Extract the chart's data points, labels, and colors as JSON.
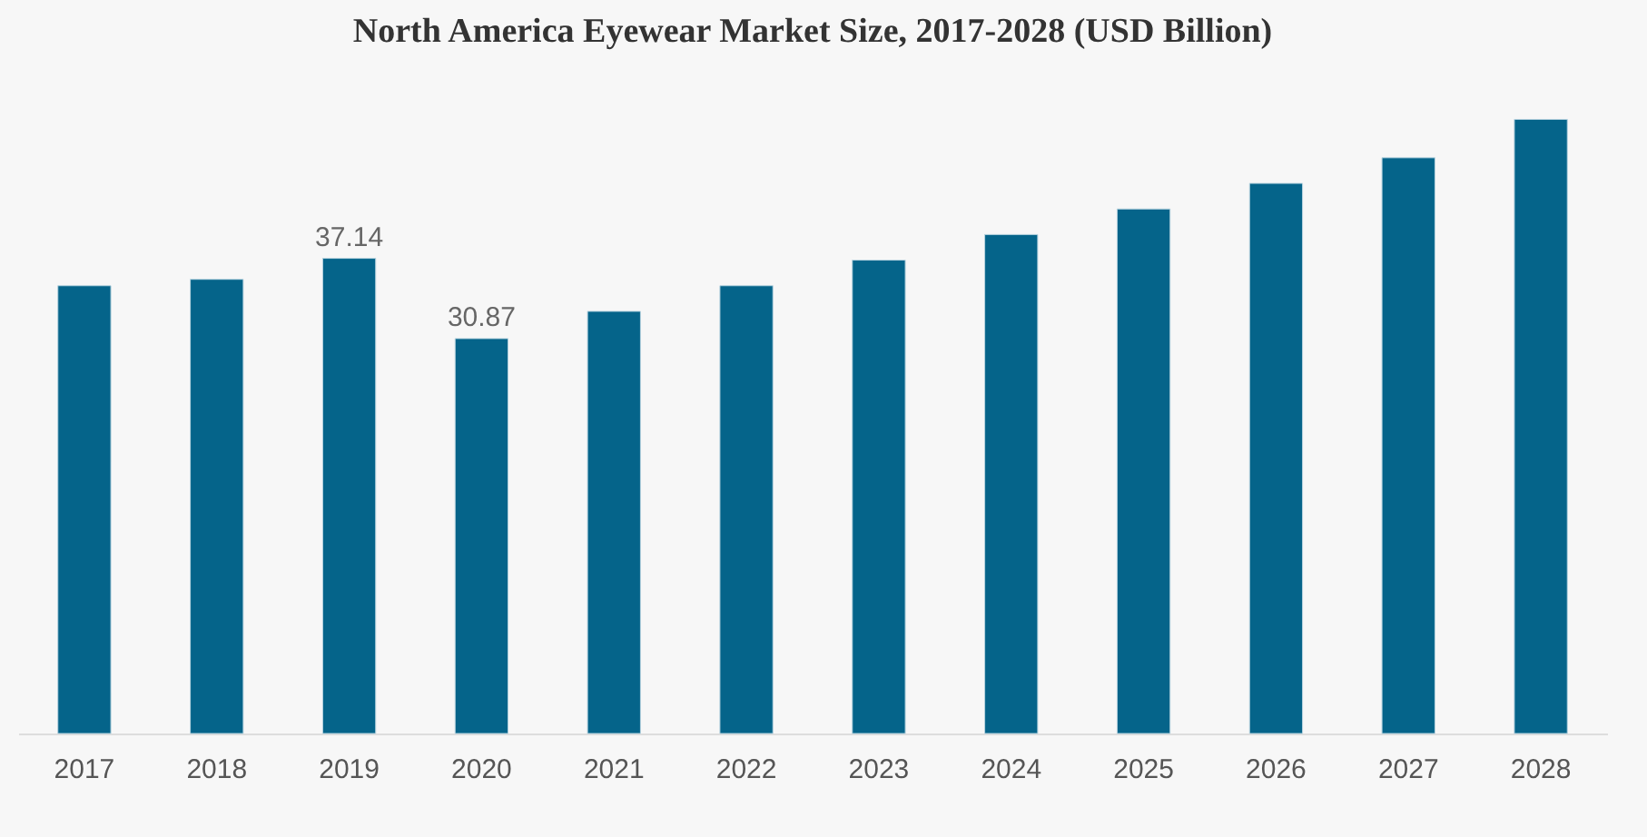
{
  "chart_data": {
    "type": "bar",
    "title": "North America Eyewear Market Size, 2017-2028 (USD Billion)",
    "categories": [
      "2017",
      "2018",
      "2019",
      "2020",
      "2021",
      "2022",
      "2023",
      "2024",
      "2025",
      "2026",
      "2027",
      "2028"
    ],
    "values": [
      35.0,
      35.5,
      37.14,
      30.87,
      33.0,
      35.0,
      37.0,
      39.0,
      41.0,
      43.0,
      45.0,
      48.0
    ],
    "value_labels": [
      null,
      null,
      "37.14",
      "30.87",
      null,
      null,
      null,
      null,
      null,
      null,
      null,
      null
    ],
    "color": "#05648a"
  }
}
